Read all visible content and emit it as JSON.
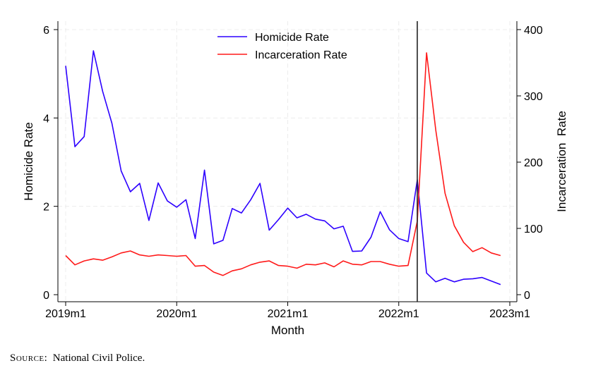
{
  "source": {
    "label": "Source:",
    "text": "National Civil Police."
  },
  "chart_data": {
    "type": "line",
    "xlabel": "Month",
    "ylabel_left": "Homicide Rate",
    "ylabel_right": "Incarceration  Rate",
    "x": [
      "2019m1",
      "2019m2",
      "2019m3",
      "2019m4",
      "2019m5",
      "2019m6",
      "2019m7",
      "2019m8",
      "2019m9",
      "2019m10",
      "2019m11",
      "2019m12",
      "2020m1",
      "2020m2",
      "2020m3",
      "2020m4",
      "2020m5",
      "2020m6",
      "2020m7",
      "2020m8",
      "2020m9",
      "2020m10",
      "2020m11",
      "2020m12",
      "2021m1",
      "2021m2",
      "2021m3",
      "2021m4",
      "2021m5",
      "2021m6",
      "2021m7",
      "2021m8",
      "2021m9",
      "2021m10",
      "2021m11",
      "2021m12",
      "2022m1",
      "2022m2",
      "2022m3",
      "2022m4",
      "2022m5",
      "2022m6",
      "2022m7",
      "2022m8",
      "2022m9",
      "2022m10",
      "2022m11",
      "2022m12"
    ],
    "xticks": [
      "2019m1",
      "2020m1",
      "2021m1",
      "2022m1",
      "2023m1"
    ],
    "left_yticks": [
      "0",
      "2",
      "4",
      "6"
    ],
    "left_ylim": [
      0,
      6.15
    ],
    "right_yticks": [
      "0",
      "100",
      "200",
      "300",
      "400"
    ],
    "right_ylim": [
      0,
      408
    ],
    "event_line_x": "2022m3",
    "grid": true,
    "legend_position": "top",
    "series": [
      {
        "name": "Homicide Rate",
        "axis": "left",
        "color": "#2d00ff",
        "values": [
          5.18,
          3.35,
          3.58,
          5.52,
          4.6,
          3.88,
          2.8,
          2.33,
          2.52,
          1.68,
          2.53,
          2.12,
          1.98,
          2.15,
          1.27,
          2.82,
          1.15,
          1.23,
          1.95,
          1.85,
          2.15,
          2.52,
          1.46,
          1.7,
          1.96,
          1.74,
          1.82,
          1.71,
          1.67,
          1.49,
          1.55,
          0.98,
          0.99,
          1.3,
          1.88,
          1.47,
          1.27,
          1.2,
          2.6,
          0.49,
          0.29,
          0.37,
          0.29,
          0.35,
          0.36,
          0.39,
          0.31,
          0.23
        ]
      },
      {
        "name": "Incarceration Rate",
        "axis": "right",
        "color": "#ff1a1a",
        "values": [
          59,
          45,
          51,
          54,
          52,
          57,
          63,
          66,
          60,
          58,
          60,
          59,
          58,
          59,
          43,
          44,
          34,
          29,
          36,
          39,
          45,
          49,
          51,
          44,
          43,
          40,
          46,
          45,
          48,
          42,
          51,
          46,
          45,
          50,
          50,
          46,
          43,
          44,
          111,
          365,
          248,
          153,
          104,
          79,
          65,
          71,
          63,
          59
        ]
      }
    ]
  }
}
